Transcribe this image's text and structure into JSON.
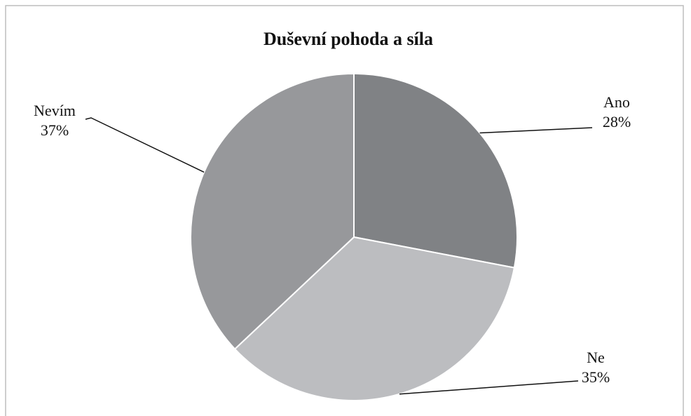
{
  "chart_data": {
    "type": "pie",
    "title": "Duševní pohoda a síla",
    "categories": [
      "Ano",
      "Ne",
      "Nevím"
    ],
    "values": [
      28,
      35,
      37
    ],
    "value_labels": [
      "28%",
      "35%",
      "37%"
    ],
    "colors": [
      "#808285",
      "#bcbdc0",
      "#97989b"
    ]
  }
}
